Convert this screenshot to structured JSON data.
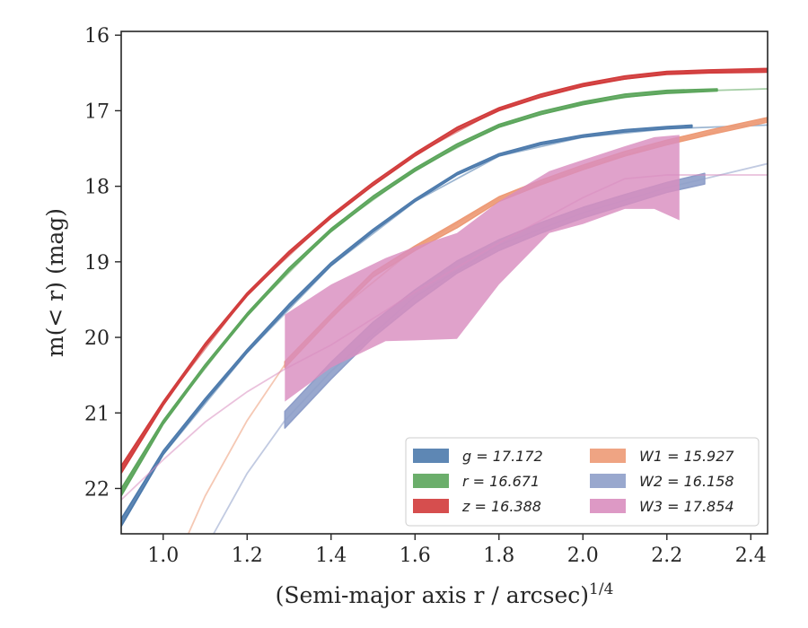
{
  "chart_data": {
    "type": "line",
    "title": "",
    "xlabel": "(Semi-major axis r / arcsec)",
    "xlabel_italic_part": "r",
    "xlabel_exponent": "1/4",
    "ylabel": "m(< r) (mag)",
    "xlim": [
      0.9,
      2.44
    ],
    "ylim": [
      22.6,
      15.95
    ],
    "y_inverted": true,
    "xticks": [
      1.0,
      1.2,
      1.4,
      1.6,
      1.8,
      2.0,
      2.2,
      2.4
    ],
    "xtick_labels": [
      "1.0",
      "1.2",
      "1.4",
      "1.6",
      "1.8",
      "2.0",
      "2.2",
      "2.4"
    ],
    "yticks": [
      16,
      17,
      18,
      19,
      20,
      21,
      22
    ],
    "ytick_labels": [
      "16",
      "17",
      "18",
      "19",
      "20",
      "21",
      "22"
    ],
    "grid": false,
    "legend_placement": "lower-right",
    "series": [
      {
        "name": "g = 17.172",
        "name_var": "g",
        "name_value": "17.172",
        "color": "#4C7AAC",
        "band_x": [
          0.9,
          1.0,
          1.1,
          1.2,
          1.3,
          1.4,
          1.5,
          1.6,
          1.7,
          1.8,
          1.9,
          2.0,
          2.1,
          2.2,
          2.26
        ],
        "band_low": [
          22.5,
          21.55,
          20.85,
          20.2,
          19.6,
          19.05,
          18.6,
          18.2,
          17.85,
          17.6,
          17.45,
          17.35,
          17.28,
          17.24,
          17.22
        ],
        "band_high": [
          22.4,
          21.5,
          20.81,
          20.16,
          19.56,
          19.01,
          18.57,
          18.17,
          17.82,
          17.57,
          17.42,
          17.32,
          17.25,
          17.21,
          17.19
        ],
        "model_x": [
          0.9,
          1.0,
          1.2,
          1.4,
          1.6,
          1.8,
          2.0,
          2.2,
          2.44
        ],
        "model_y": [
          22.5,
          21.55,
          20.2,
          19.05,
          18.2,
          17.6,
          17.35,
          17.24,
          17.19
        ]
      },
      {
        "name": "r = 16.671",
        "name_var": "r",
        "name_value": "16.671",
        "color": "#5BA55B",
        "band_x": [
          0.9,
          1.0,
          1.1,
          1.2,
          1.3,
          1.4,
          1.5,
          1.6,
          1.7,
          1.8,
          1.9,
          2.0,
          2.1,
          2.2,
          2.32
        ],
        "band_low": [
          22.1,
          21.15,
          20.4,
          19.72,
          19.12,
          18.6,
          18.17,
          17.8,
          17.48,
          17.22,
          17.05,
          16.92,
          16.82,
          16.77,
          16.74
        ],
        "band_high": [
          22.0,
          21.1,
          20.36,
          19.68,
          19.08,
          18.56,
          18.13,
          17.76,
          17.44,
          17.18,
          17.01,
          16.88,
          16.78,
          16.73,
          16.71
        ],
        "model_x": [
          0.9,
          1.0,
          1.2,
          1.4,
          1.6,
          1.8,
          2.0,
          2.2,
          2.44
        ],
        "model_y": [
          22.05,
          21.12,
          19.7,
          18.58,
          17.78,
          17.2,
          16.9,
          16.75,
          16.71
        ]
      },
      {
        "name": "z = 16.388",
        "name_var": "z",
        "name_value": "16.388",
        "color": "#D13B3B",
        "band_x": [
          0.9,
          1.0,
          1.1,
          1.2,
          1.3,
          1.4,
          1.5,
          1.6,
          1.7,
          1.8,
          1.9,
          2.0,
          2.1,
          2.2,
          2.3,
          2.44
        ],
        "band_low": [
          21.8,
          20.9,
          20.12,
          19.45,
          18.9,
          18.42,
          17.99,
          17.6,
          17.26,
          17.0,
          16.82,
          16.68,
          16.58,
          16.52,
          16.5,
          16.49
        ],
        "band_high": [
          21.7,
          20.85,
          20.08,
          19.41,
          18.86,
          18.38,
          17.95,
          17.56,
          17.22,
          16.96,
          16.78,
          16.64,
          16.54,
          16.48,
          16.46,
          16.44
        ],
        "model_x": [
          0.9,
          1.0,
          1.2,
          1.4,
          1.6,
          1.8,
          2.0,
          2.2,
          2.44
        ],
        "model_y": [
          21.75,
          20.87,
          19.43,
          18.4,
          17.58,
          16.98,
          16.66,
          16.5,
          16.46
        ]
      },
      {
        "name": "W1 = 15.927",
        "name_var": "W1",
        "name_value": "15.927",
        "color": "#ED9A76",
        "band_x": [
          1.29,
          1.4,
          1.5,
          1.6,
          1.7,
          1.8,
          1.9,
          2.0,
          2.1,
          2.2,
          2.3,
          2.44
        ],
        "band_low": [
          20.4,
          19.75,
          19.2,
          18.85,
          18.55,
          18.2,
          17.98,
          17.78,
          17.6,
          17.45,
          17.32,
          17.15
        ],
        "band_high": [
          20.32,
          19.69,
          19.14,
          18.79,
          18.47,
          18.14,
          17.92,
          17.72,
          17.54,
          17.39,
          17.26,
          17.09
        ],
        "model_x": [
          1.06,
          1.1,
          1.2,
          1.29,
          1.4,
          1.6,
          1.8,
          2.0,
          2.2,
          2.44
        ],
        "model_y": [
          22.6,
          22.1,
          21.1,
          20.36,
          19.72,
          18.82,
          18.17,
          17.75,
          17.42,
          17.12
        ]
      },
      {
        "name": "W2 = 16.158",
        "name_var": "W2",
        "name_value": "16.158",
        "color": "#8E9EC9",
        "band_x": [
          1.29,
          1.4,
          1.5,
          1.6,
          1.7,
          1.8,
          1.9,
          2.0,
          2.1,
          2.2,
          2.29
        ],
        "band_low": [
          21.2,
          20.55,
          20.0,
          19.55,
          19.15,
          18.85,
          18.62,
          18.42,
          18.25,
          18.08,
          17.97
        ],
        "band_high": [
          20.98,
          20.33,
          19.8,
          19.37,
          18.99,
          18.71,
          18.48,
          18.28,
          18.11,
          17.95,
          17.83
        ],
        "model_x": [
          1.12,
          1.2,
          1.29,
          1.4,
          1.6,
          1.8,
          2.0,
          2.2,
          2.44
        ],
        "model_y": [
          22.6,
          21.8,
          21.1,
          20.45,
          19.46,
          18.78,
          18.35,
          18.02,
          17.7
        ]
      },
      {
        "name": "W3 = 17.854",
        "name_var": "W3",
        "name_value": "17.854",
        "color": "#D98EBF",
        "band_x": [
          1.29,
          1.4,
          1.53,
          1.6,
          1.7,
          1.8,
          1.92,
          2.0,
          2.1,
          2.17,
          2.23
        ],
        "band_upper": [
          19.7,
          19.3,
          18.95,
          18.8,
          18.62,
          18.2,
          17.8,
          17.65,
          17.47,
          17.35,
          17.32
        ],
        "band_lower": [
          20.85,
          20.4,
          20.05,
          20.04,
          20.02,
          19.3,
          18.62,
          18.5,
          18.3,
          18.3,
          18.45
        ],
        "model_x": [
          0.9,
          1.0,
          1.1,
          1.2,
          1.29,
          1.4,
          1.6,
          1.8,
          2.0,
          2.1,
          2.2,
          2.44
        ],
        "model_y": [
          22.15,
          21.62,
          21.12,
          20.72,
          20.42,
          20.1,
          19.4,
          18.75,
          18.15,
          17.9,
          17.85,
          17.85
        ]
      }
    ]
  }
}
